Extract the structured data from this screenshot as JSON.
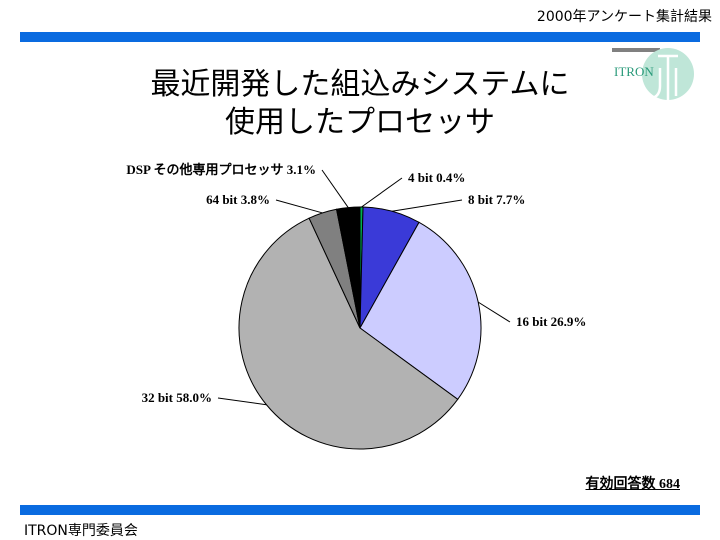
{
  "header": {
    "survey_title": "2000年アンケート集計結果"
  },
  "title": {
    "line1": "最近開発した組込みシステムに",
    "line2": "使用したプロセッサ"
  },
  "logo": {
    "text": "ITRON",
    "color": "#2a9a7a"
  },
  "footer": {
    "committee": "ITRON専門委員会"
  },
  "respondents": "有効回答数 684",
  "colors": {
    "bar": "#0a6be0"
  },
  "chart_data": {
    "type": "pie",
    "slices": [
      {
        "label": "4 bit 0.4%",
        "value": 0.4,
        "color": "#00b050"
      },
      {
        "label": "8 bit 7.7%",
        "value": 7.7,
        "color": "#3a3ad8"
      },
      {
        "label": "16 bit 26.9%",
        "value": 26.9,
        "color": "#ccccff"
      },
      {
        "label": "32 bit 58.0%",
        "value": 58.0,
        "color": "#b2b2b2"
      },
      {
        "label": "64 bit 3.8%",
        "value": 3.8,
        "color": "#808080"
      },
      {
        "label": "DSP その他専用プロセッサ 3.1%",
        "value": 3.1,
        "color": "#000000"
      }
    ]
  }
}
